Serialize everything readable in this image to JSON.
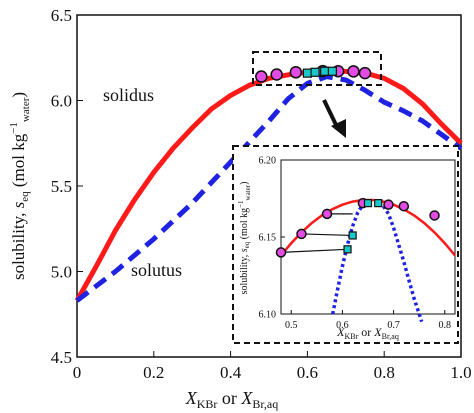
{
  "colors": {
    "solidus": "#ff1a1a",
    "solutus": "#1f22e0",
    "solid_marker": "#e34ce3",
    "aq_marker": "#18c7c7",
    "axis": "#111111"
  },
  "chart_data": [
    {
      "type": "line",
      "role": "main",
      "xlabel": {
        "main": "X",
        "sub1": "KBr",
        "mid": " or ",
        "main2": "X",
        "sub2": "Br,aq"
      },
      "ylabel": {
        "pre": "solubility, ",
        "s": "s",
        "s_sub": "eq",
        "unit_pre": " (mol kg",
        "unit_sup": "−1",
        "unit_sub": "water",
        "unit_post": ")"
      },
      "xlim": [
        0,
        1.0
      ],
      "ylim": [
        4.5,
        6.5
      ],
      "xticks": [
        "0",
        "0.2",
        "0.4",
        "0.6",
        "0.8",
        "1.0"
      ],
      "yticks": [
        "4.5",
        "5.0",
        "5.5",
        "6.0",
        "6.5"
      ],
      "annotations": {
        "solidus": "solidus",
        "solutus": "solutus"
      },
      "series": [
        {
          "name": "solidus",
          "style": "solid",
          "x": [
            0,
            0.05,
            0.1,
            0.15,
            0.2,
            0.25,
            0.3,
            0.35,
            0.4,
            0.45,
            0.5,
            0.55,
            0.6,
            0.65,
            0.7,
            0.75,
            0.8,
            0.85,
            0.9,
            0.95,
            1.0
          ],
          "y": [
            4.83,
            5.03,
            5.24,
            5.42,
            5.58,
            5.72,
            5.84,
            5.95,
            6.03,
            6.09,
            6.13,
            6.15,
            6.165,
            6.172,
            6.17,
            6.16,
            6.13,
            6.07,
            5.98,
            5.86,
            5.75
          ]
        },
        {
          "name": "solutus",
          "style": "dashed",
          "x": [
            0,
            0.1,
            0.2,
            0.3,
            0.4,
            0.5,
            0.55,
            0.6,
            0.65,
            0.7,
            0.75,
            0.8,
            0.85,
            0.9,
            0.95,
            1.0
          ],
          "y": [
            4.83,
            5.0,
            5.19,
            5.4,
            5.64,
            5.88,
            6.01,
            6.1,
            6.14,
            6.12,
            6.06,
            5.99,
            5.94,
            5.88,
            5.8,
            5.72
          ]
        }
      ],
      "markers_solid": {
        "x": [
          0.48,
          0.52,
          0.57,
          0.64,
          0.68,
          0.72,
          0.75
        ],
        "y": [
          6.14,
          6.152,
          6.165,
          6.172,
          6.171,
          6.17,
          6.16
        ]
      },
      "markers_aq": {
        "x": [
          0.6,
          0.62,
          0.645,
          0.665
        ],
        "y": [
          6.16,
          6.165,
          6.171,
          6.171
        ]
      }
    },
    {
      "type": "line",
      "role": "inset",
      "xlabel": {
        "main": "X",
        "sub1": "KBr",
        "mid": " or ",
        "main2": "X",
        "sub2": "Br,aq"
      },
      "ylabel": {
        "pre": "solubility, ",
        "s": "s",
        "s_sub": "eq",
        "unit_pre": " (mol kg",
        "unit_sup": "−1",
        "unit_sub": "water",
        "unit_post": ")"
      },
      "xlim": [
        0.48,
        0.82
      ],
      "ylim": [
        6.1,
        6.2
      ],
      "xticks": [
        "0.5",
        "0.6",
        "0.7",
        "0.8"
      ],
      "yticks": [
        "6.10",
        "6.15",
        "6.20"
      ],
      "series": [
        {
          "name": "solidus",
          "style": "solid",
          "x": [
            0.48,
            0.5,
            0.52,
            0.54,
            0.56,
            0.58,
            0.6,
            0.62,
            0.64,
            0.66,
            0.68,
            0.7,
            0.72,
            0.74,
            0.76,
            0.78,
            0.8,
            0.82
          ],
          "y": [
            6.138,
            6.146,
            6.153,
            6.159,
            6.164,
            6.168,
            6.171,
            6.173,
            6.174,
            6.174,
            6.173,
            6.171,
            6.168,
            6.164,
            6.159,
            6.153,
            6.146,
            6.138
          ]
        },
        {
          "name": "solutus-left",
          "style": "dotted",
          "x": [
            0.581,
            0.59,
            0.6,
            0.61,
            0.62,
            0.63,
            0.64
          ],
          "y": [
            6.1,
            6.115,
            6.131,
            6.145,
            6.157,
            6.166,
            6.171
          ]
        },
        {
          "name": "solutus-right",
          "style": "dotted",
          "x": [
            0.68,
            0.69,
            0.7,
            0.71,
            0.72,
            0.73,
            0.74,
            0.75,
            0.755
          ],
          "y": [
            6.17,
            6.165,
            6.156,
            6.145,
            6.134,
            6.122,
            6.11,
            6.1,
            6.095
          ]
        }
      ],
      "markers_solid": {
        "x": [
          0.48,
          0.52,
          0.57,
          0.64,
          0.69,
          0.72,
          0.78
        ],
        "y": [
          6.14,
          6.152,
          6.165,
          6.172,
          6.171,
          6.17,
          6.164
        ]
      },
      "markers_aq": {
        "x": [
          0.61,
          0.62,
          0.65,
          0.67
        ],
        "y": [
          6.142,
          6.151,
          6.172,
          6.172
        ]
      },
      "tie_lines": [
        {
          "x1": 0.48,
          "y1": 6.14,
          "x2": 0.61,
          "y2": 6.142
        },
        {
          "x1": 0.52,
          "y1": 6.152,
          "x2": 0.62,
          "y2": 6.151
        },
        {
          "x1": 0.57,
          "y1": 6.165,
          "x2": 0.62,
          "y2": 6.165
        }
      ]
    }
  ]
}
